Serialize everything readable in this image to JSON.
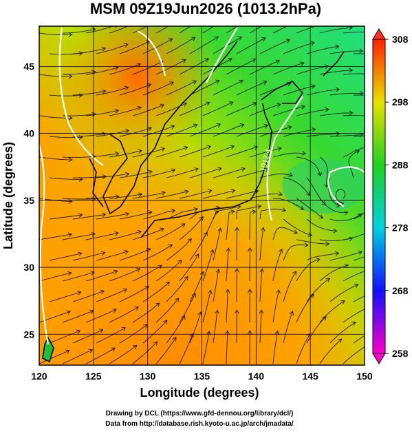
{
  "header": {
    "title": "MSM 09Z19Jun2026 (1013.2hPa)"
  },
  "map": {
    "xlabel": "Longitude (degrees)",
    "ylabel": "Latitude  (degrees)",
    "xlim": [
      120,
      150
    ],
    "ylim": [
      22.7,
      48
    ],
    "xticks": [
      120,
      125,
      130,
      135,
      140,
      145,
      150
    ],
    "yticks": [
      25,
      30,
      35,
      40,
      45
    ],
    "contour_label": "1012.4"
  },
  "colorbar": {
    "lim": [
      258,
      308
    ],
    "ticks": [
      258,
      268,
      278,
      288,
      298,
      308
    ]
  },
  "footer": [
    "Drawing by DCL (https://www.gfd-dennou.org/library/dcl/)",
    "Data from http://database.rish.kyoto-u.ac.jp/arch/jmadata/"
  ]
}
